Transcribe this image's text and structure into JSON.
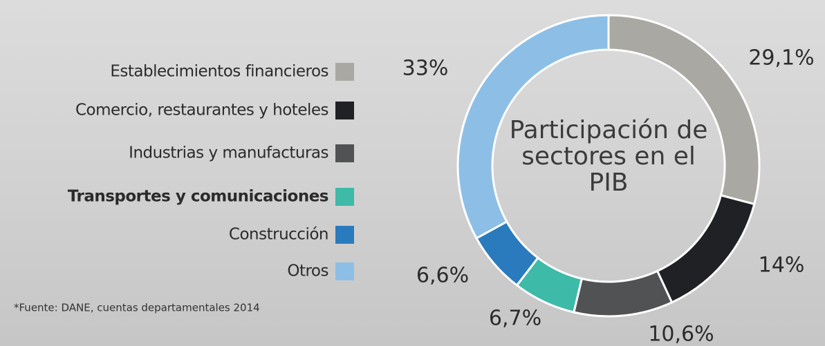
{
  "chart_data": {
    "type": "donut",
    "title": "Participación de sectores en el PIB",
    "categories": [
      "Establecimientos financieros",
      "Comercio, restaurantes y hoteles",
      "Industrias y manufacturas",
      "Transportes y comunicaciones",
      "Construcción",
      "Otros"
    ],
    "values": [
      29.1,
      14,
      10.6,
      6.7,
      6.6,
      33
    ],
    "value_labels": [
      "29,1%",
      "14%",
      "10,6%",
      "6,7%",
      "6,6%",
      "33%"
    ],
    "colors": [
      "#a9a8a3",
      "#1f2124",
      "#505254",
      "#3dbaa8",
      "#2a7bbd",
      "#8dbfe6"
    ],
    "source": "*Fuente: DANE, cuentas departamentales 2014"
  }
}
